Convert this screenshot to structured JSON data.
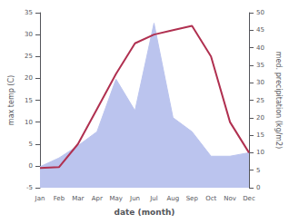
{
  "chart_data": {
    "type": "line",
    "xlabel": "date (month)",
    "ylabel": "max temp (C)",
    "y2label": "med. precipitation (kg/m2)",
    "categories": [
      "Jan",
      "Feb",
      "Mar",
      "Apr",
      "May",
      "Jun",
      "Jul",
      "Aug",
      "Sep",
      "Oct",
      "Nov",
      "Dec"
    ],
    "series": [
      {
        "type": "area",
        "axis": "y2",
        "color": "#bbc4ee",
        "values": [
          6,
          8.5,
          12,
          16,
          31,
          22,
          47,
          20,
          16,
          9,
          9,
          10
        ]
      },
      {
        "type": "line",
        "axis": "y",
        "color": "#b03050",
        "values": [
          -0.5,
          -0.3,
          5,
          13,
          21,
          28,
          30,
          31,
          32,
          25,
          10,
          3
        ]
      }
    ],
    "ylim": [
      -5,
      35
    ],
    "yticks": [
      -5,
      0,
      5,
      10,
      15,
      20,
      25,
      30,
      35
    ],
    "y2lim": [
      0,
      50
    ],
    "y2ticks": [
      0,
      5,
      10,
      15,
      20,
      25,
      30,
      35,
      40,
      45,
      50
    ],
    "grid": false
  }
}
